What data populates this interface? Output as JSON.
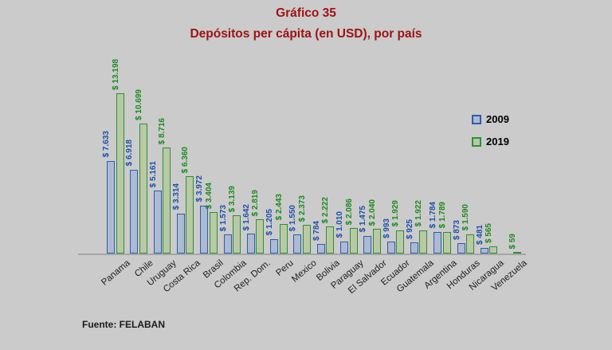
{
  "source": "Fuente: FELABAN",
  "colors": {
    "background": "#CBCBCB",
    "title": "#9E1212",
    "axis": "#A5A5A5",
    "category_label": "#1F1F1F",
    "legend_text": "#000000"
  },
  "chart_data": {
    "type": "bar",
    "title": "Gráfico 35",
    "subtitle": "Depósitos per cápita (en USD), por país",
    "categories": [
      "Panama",
      "Chile",
      "Uruguay",
      "Costa Rica",
      "Brasil",
      "Colombia",
      "Rep. Dom.",
      "Peru",
      "Mexico",
      "Bolivia",
      "Paraguay",
      "El Salvador",
      "Ecuador",
      "Guatemala",
      "Argentina",
      "Honduras",
      "Nicaragua",
      "Venezuela"
    ],
    "series": [
      {
        "name": "2009",
        "fill": "#ACBAD3",
        "border": "#2E5EA8",
        "label_color": "#1E50A8",
        "values": [
          7633,
          6918,
          5161,
          3314,
          3972,
          1573,
          1642,
          1205,
          1550,
          784,
          1010,
          1475,
          993,
          925,
          1784,
          873,
          481,
          null
        ],
        "labels": [
          "$ 7.633",
          "$ 6.918",
          "$ 5.161",
          "$ 3.314",
          "$ 3.972",
          "$ 1.573",
          "$ 1.642",
          "$ 1.205",
          "$ 1.550",
          "$ 784",
          "$ 1.010",
          "$ 1.475",
          "$ 993",
          "$ 925",
          "$ 1.784",
          "$ 873",
          "$ 481",
          ""
        ]
      },
      {
        "name": "2019",
        "fill": "#B9C9A5",
        "border": "#2E8F35",
        "label_color": "#1C8A20",
        "values": [
          13198,
          10699,
          8716,
          6360,
          3404,
          3139,
          2819,
          2443,
          2373,
          2222,
          2086,
          2040,
          1929,
          1922,
          1789,
          1590,
          565,
          59
        ],
        "labels": [
          "$ 13.198",
          "$ 10.699",
          "$ 8.716",
          "$ 6.360",
          "$ 3.404",
          "$ 3.139",
          "$ 2.819",
          "$ 2.443",
          "$ 2.373",
          "$ 2.222",
          "$ 2.086",
          "$ 2.040",
          "$ 1.929",
          "$ 1.922",
          "$ 1.789",
          "$ 1.590",
          "$ 565",
          "$ 59"
        ]
      }
    ],
    "ylim": [
      0,
      13198
    ],
    "grid": false,
    "legend_position": "right",
    "value_label_format": "rotated-90-above-bar"
  }
}
